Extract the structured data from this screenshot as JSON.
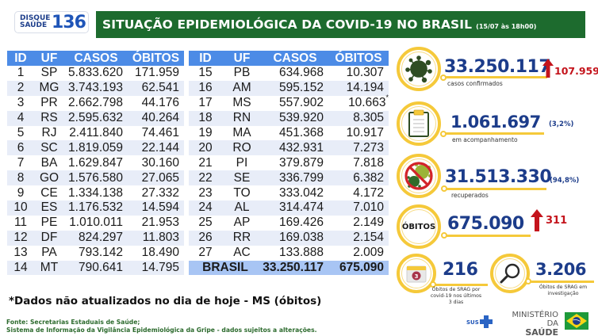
{
  "header": {
    "hotline_label": "DISQUE SAÚDE",
    "hotline_line1": "DISQUE",
    "hotline_line2": "SAÚDE",
    "hotline_number": "136",
    "title": "SITUAÇÃO EPIDEMIOLÓGICA DA COVID-19 NO BRASIL",
    "date": "(15/07 às 18h00)"
  },
  "table": {
    "headers": [
      "ID",
      "UF",
      "CASOS",
      "ÓBITOS"
    ],
    "left": [
      {
        "id": "1",
        "uf": "SP",
        "casos": "5.833.620",
        "obitos": "171.959"
      },
      {
        "id": "2",
        "uf": "MG",
        "casos": "3.743.193",
        "obitos": "62.541"
      },
      {
        "id": "3",
        "uf": "PR",
        "casos": "2.662.798",
        "obitos": "44.176"
      },
      {
        "id": "4",
        "uf": "RS",
        "casos": "2.595.632",
        "obitos": "40.264"
      },
      {
        "id": "5",
        "uf": "RJ",
        "casos": "2.411.840",
        "obitos": "74.461"
      },
      {
        "id": "6",
        "uf": "SC",
        "casos": "1.819.059",
        "obitos": "22.144"
      },
      {
        "id": "7",
        "uf": "BA",
        "casos": "1.629.847",
        "obitos": "30.160"
      },
      {
        "id": "8",
        "uf": "GO",
        "casos": "1.576.580",
        "obitos": "27.065"
      },
      {
        "id": "9",
        "uf": "CE",
        "casos": "1.334.138",
        "obitos": "27.332"
      },
      {
        "id": "10",
        "uf": "ES",
        "casos": "1.176.532",
        "obitos": "14.594"
      },
      {
        "id": "11",
        "uf": "PE",
        "casos": "1.010.011",
        "obitos": "21.953"
      },
      {
        "id": "12",
        "uf": "DF",
        "casos": "824.297",
        "obitos": "11.803"
      },
      {
        "id": "13",
        "uf": "PA",
        "casos": "793.142",
        "obitos": "18.490"
      },
      {
        "id": "14",
        "uf": "MT",
        "casos": "790.641",
        "obitos": "14.795"
      }
    ],
    "right": [
      {
        "id": "15",
        "uf": "PB",
        "casos": "634.968",
        "obitos": "10.307"
      },
      {
        "id": "16",
        "uf": "AM",
        "casos": "595.152",
        "obitos": "14.194"
      },
      {
        "id": "17",
        "uf": "MS",
        "casos": "557.902",
        "obitos": "10.663",
        "flag": "*"
      },
      {
        "id": "18",
        "uf": "RN",
        "casos": "539.920",
        "obitos": "8.305"
      },
      {
        "id": "19",
        "uf": "MA",
        "casos": "451.368",
        "obitos": "10.917"
      },
      {
        "id": "20",
        "uf": "RO",
        "casos": "432.931",
        "obitos": "7.273"
      },
      {
        "id": "21",
        "uf": "PI",
        "casos": "379.879",
        "obitos": "7.818"
      },
      {
        "id": "22",
        "uf": "SE",
        "casos": "336.799",
        "obitos": "6.382"
      },
      {
        "id": "23",
        "uf": "TO",
        "casos": "333.042",
        "obitos": "4.172"
      },
      {
        "id": "24",
        "uf": "AL",
        "casos": "314.474",
        "obitos": "7.010"
      },
      {
        "id": "25",
        "uf": "AP",
        "casos": "169.426",
        "obitos": "2.149"
      },
      {
        "id": "26",
        "uf": "RR",
        "casos": "169.038",
        "obitos": "2.154"
      },
      {
        "id": "27",
        "uf": "AC",
        "casos": "133.888",
        "obitos": "2.009"
      }
    ],
    "total": {
      "label": "BRASIL",
      "casos": "33.250.117",
      "obitos": "675.090"
    }
  },
  "note": "*Dados não atualizados no dia de hoje - MS (óbitos)",
  "source": {
    "line1": "Fonte: Secretarias Estaduais de Saúde;",
    "line2": "Sistema de Informação da Vigilância Epidemiológica da Gripe - dados sujeitos a alterações."
  },
  "stats": {
    "confirmed": {
      "value": "33.250.117",
      "label": "casos confirmados",
      "delta": "107.959",
      "icon": "virus-icon"
    },
    "monitoring": {
      "value": "1.061.697",
      "label": "em acompanhamento",
      "pct": "(3,2%)",
      "icon": "clipboard-icon"
    },
    "recovered": {
      "value": "31.513.330",
      "label": "recuperados",
      "pct": "(94,8%)",
      "icon": "no-virus-icon"
    },
    "deaths": {
      "badge": "ÓBITOS",
      "value": "675.090",
      "delta": "311"
    },
    "srag_recent": {
      "value": "216",
      "label_1": "Óbitos de SRAG por",
      "label_2": "covid-19 nos últimos",
      "label_3": "3 dias",
      "calendar_num": "3"
    },
    "srag_investigation": {
      "value": "3.206",
      "label_1": "Óbitos de SRAG em",
      "label_2": "investigação",
      "icon": "magnifier-icon"
    }
  },
  "footer": {
    "sus": "SUS",
    "ministry_line1": "MINISTÉRIO DA",
    "ministry_line2": "SAÚDE"
  },
  "colors": {
    "title_green": "#1d6b2e",
    "table_header_blue": "#4c8be6",
    "row_alt": "#e8edf8",
    "total_row": "#a8c5f4",
    "stat_blue": "#1c3c8a",
    "delta_red": "#c4141c",
    "ring_yellow": "#f5c93a"
  }
}
